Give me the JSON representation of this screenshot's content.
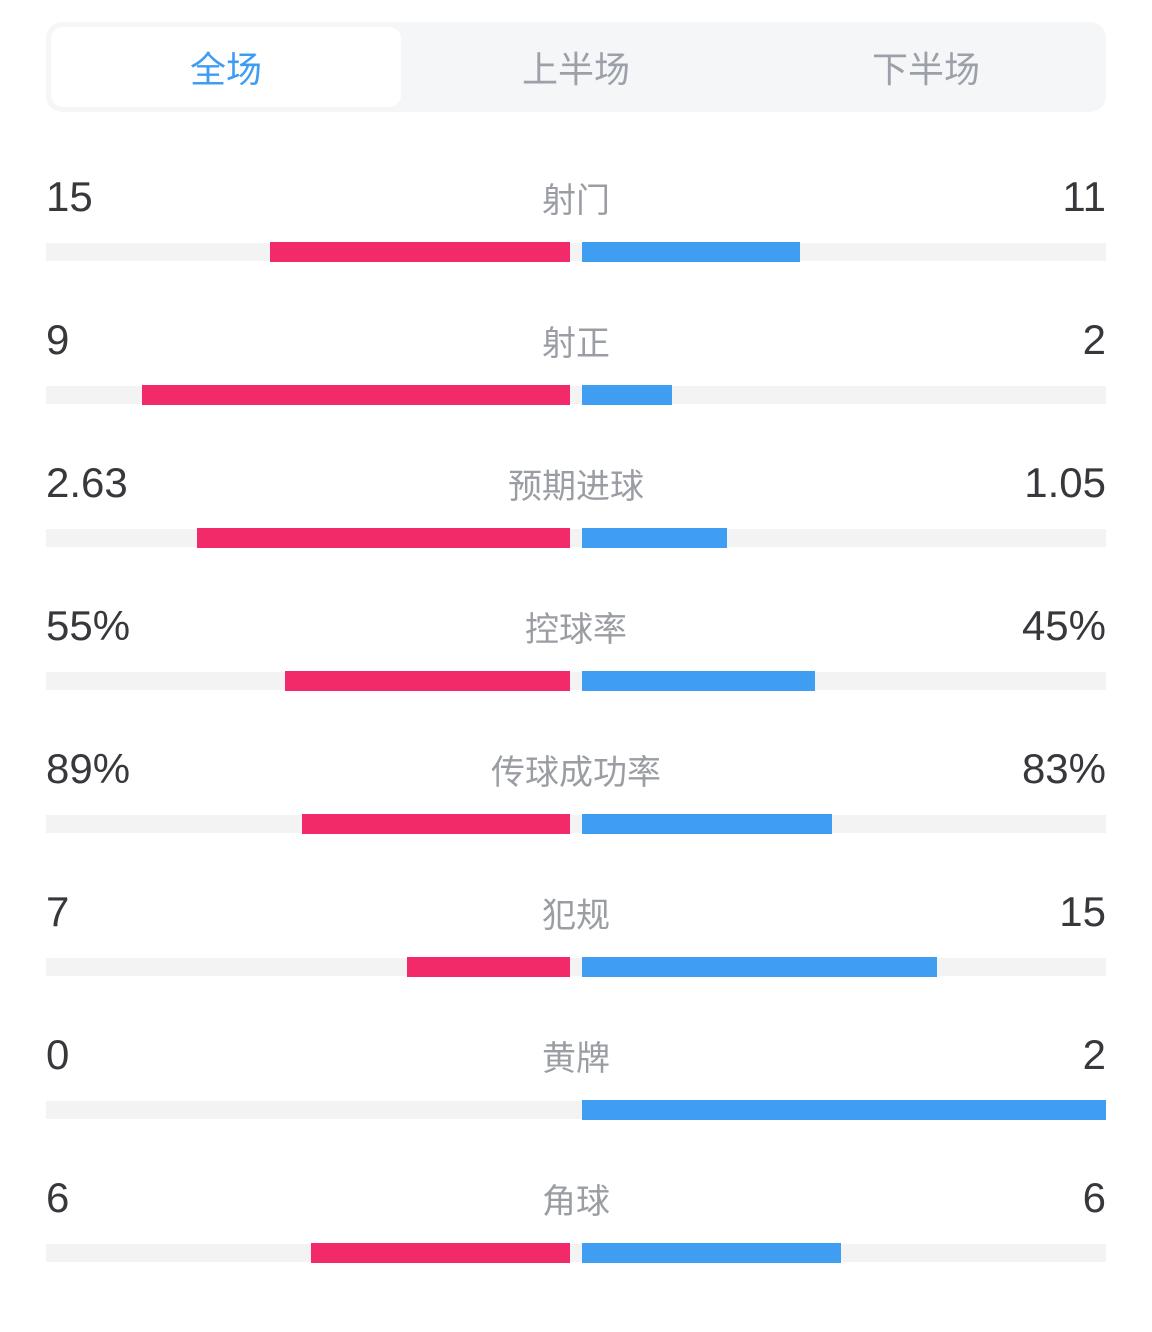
{
  "tabs": [
    {
      "label": "全场",
      "selected": true
    },
    {
      "label": "上半场",
      "selected": false
    },
    {
      "label": "下半场",
      "selected": false
    }
  ],
  "colors": {
    "home": "#F22A6A",
    "away": "#3F9DF2",
    "track": "#F3F3F4",
    "tab_bar_bg": "#F5F6F8",
    "tab_active_bg": "#FFFFFF",
    "tab_active_text": "#3E9CF4",
    "tab_inactive_text": "#9CA0A8",
    "value_text": "#37383C",
    "label_text": "#9A9DA3"
  },
  "stats": [
    {
      "label": "射门",
      "home": "15",
      "away": "11",
      "home_val": 15,
      "away_val": 11
    },
    {
      "label": "射正",
      "home": "9",
      "away": "2",
      "home_val": 9,
      "away_val": 2
    },
    {
      "label": "预期进球",
      "home": "2.63",
      "away": "1.05",
      "home_val": 2.63,
      "away_val": 1.05
    },
    {
      "label": "控球率",
      "home": "55%",
      "away": "45%",
      "home_val": 55,
      "away_val": 45
    },
    {
      "label": "传球成功率",
      "home": "89%",
      "away": "83%",
      "home_val": 89,
      "away_val": 83
    },
    {
      "label": "犯规",
      "home": "7",
      "away": "15",
      "home_val": 7,
      "away_val": 15
    },
    {
      "label": "黄牌",
      "home": "0",
      "away": "2",
      "home_val": 0,
      "away_val": 2
    },
    {
      "label": "角球",
      "home": "6",
      "away": "6",
      "home_val": 6,
      "away_val": 6
    }
  ],
  "chart_data": {
    "type": "bar",
    "orientation": "horizontal-paired-from-center",
    "categories": [
      "射门",
      "射正",
      "预期进球",
      "控球率",
      "传球成功率",
      "犯规",
      "黄牌",
      "角球"
    ],
    "series": [
      {
        "name": "home",
        "color": "#F22A6A",
        "values": [
          15,
          9,
          2.63,
          55,
          89,
          7,
          0,
          6
        ]
      },
      {
        "name": "away",
        "color": "#3F9DF2",
        "values": [
          11,
          2,
          1.05,
          45,
          83,
          15,
          2,
          6
        ]
      }
    ],
    "value_labels": {
      "home": [
        "15",
        "9",
        "2.63",
        "55%",
        "89%",
        "7",
        "0",
        "6"
      ],
      "away": [
        "11",
        "2",
        "1.05",
        "45%",
        "83%",
        "15",
        "2",
        "6"
      ]
    },
    "normalization": "bar length = value / (home + away) per row, drawn outward from center"
  }
}
